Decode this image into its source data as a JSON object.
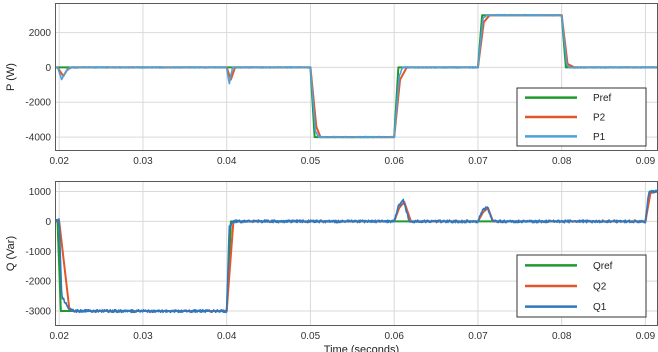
{
  "colors": {
    "ref": "#1f9a2e",
    "second": "#e2572a",
    "first": "#4ea1d8",
    "first_bottom": "#2f78c0",
    "grid": "#d9d9d9",
    "axis": "#5a5a5a"
  },
  "chart_data": [
    {
      "type": "line",
      "ylabel": "P (W)",
      "xlabel": "",
      "xlim": [
        0.0195,
        0.0915
      ],
      "ylim": [
        -4800,
        3700
      ],
      "xticks": [
        0.02,
        0.03,
        0.04,
        0.05,
        0.06,
        0.07,
        0.08,
        0.09
      ],
      "xtick_labels": [
        "0.02",
        "0.03",
        "0.04",
        "0.05",
        "0.06",
        "0.07",
        "0.08",
        "0.09"
      ],
      "yticks": [
        -4000,
        -2000,
        0,
        2000
      ],
      "ytick_labels": [
        "-4000",
        "-2000",
        "0",
        "2000"
      ],
      "grid": true,
      "legend_position": "bottom-right",
      "series": [
        {
          "name": "Pref",
          "color_key": "ref",
          "x": [
            0.0195,
            0.05,
            0.0505,
            0.06,
            0.0605,
            0.07,
            0.0705,
            0.08,
            0.0805,
            0.0915
          ],
          "y": [
            0,
            0,
            -4000,
            -4000,
            0,
            0,
            3000,
            3000,
            0,
            0
          ]
        },
        {
          "name": "P2",
          "color_key": "second",
          "x": [
            0.0195,
            0.0198,
            0.0205,
            0.021,
            0.0215,
            0.04,
            0.0405,
            0.041,
            0.05,
            0.0507,
            0.0512,
            0.06,
            0.0607,
            0.0615,
            0.07,
            0.0707,
            0.0714,
            0.08,
            0.0807,
            0.0815,
            0.0915
          ],
          "y": [
            0,
            0,
            -500,
            -100,
            0,
            0,
            -700,
            0,
            0,
            -3400,
            -4000,
            -4000,
            -700,
            0,
            0,
            2600,
            3000,
            3000,
            200,
            0,
            0
          ]
        },
        {
          "name": "P1",
          "color_key": "first",
          "noise": 35,
          "x": [
            0.0195,
            0.0198,
            0.0203,
            0.0208,
            0.0213,
            0.04,
            0.0403,
            0.0407,
            0.05,
            0.0506,
            0.051,
            0.06,
            0.0606,
            0.061,
            0.07,
            0.0706,
            0.071,
            0.08,
            0.0806,
            0.081,
            0.0915
          ],
          "y": [
            0,
            0,
            -700,
            -250,
            0,
            0,
            -950,
            0,
            0,
            -3700,
            -4000,
            -4000,
            -500,
            0,
            0,
            2800,
            3000,
            3000,
            150,
            0,
            0
          ]
        }
      ]
    },
    {
      "type": "line",
      "ylabel": "Q (Var)",
      "xlabel": "Time (seconds)",
      "xlim": [
        0.0195,
        0.0915
      ],
      "ylim": [
        -3500,
        1350
      ],
      "xticks": [
        0.02,
        0.03,
        0.04,
        0.05,
        0.06,
        0.07,
        0.08,
        0.09
      ],
      "xtick_labels": [
        "0.02",
        "0.03",
        "0.04",
        "0.05",
        "0.06",
        "0.07",
        "0.08",
        "0.09"
      ],
      "yticks": [
        -3000,
        -2000,
        -1000,
        0,
        1000
      ],
      "ytick_labels": [
        "-3000",
        "-2000",
        "-1000",
        "0",
        "1000"
      ],
      "grid": true,
      "legend_position": "bottom-right",
      "series": [
        {
          "name": "Qref",
          "color_key": "ref",
          "x": [
            0.0195,
            0.0198,
            0.0202,
            0.04,
            0.0405,
            0.09,
            0.0905,
            0.0915
          ],
          "y": [
            0,
            0,
            -3000,
            -3000,
            0,
            0,
            1000,
            1000
          ]
        },
        {
          "name": "Q2",
          "color_key": "second",
          "x": [
            0.0195,
            0.02,
            0.0212,
            0.0218,
            0.04,
            0.0408,
            0.06,
            0.0606,
            0.0612,
            0.062,
            0.07,
            0.0706,
            0.0712,
            0.0718,
            0.09,
            0.0906,
            0.0915
          ],
          "y": [
            0,
            0,
            -2900,
            -3000,
            -3000,
            0,
            0,
            450,
            650,
            0,
            0,
            300,
            450,
            0,
            0,
            950,
            1000
          ]
        },
        {
          "name": "Q1",
          "color_key": "first_bottom",
          "noise": 45,
          "x": [
            0.0195,
            0.02,
            0.0203,
            0.0212,
            0.0218,
            0.04,
            0.0403,
            0.0408,
            0.06,
            0.0605,
            0.0611,
            0.0618,
            0.07,
            0.0705,
            0.0711,
            0.0717,
            0.09,
            0.0904,
            0.0915
          ],
          "y": [
            0,
            50,
            -2500,
            -2950,
            -3000,
            -3000,
            -200,
            0,
            0,
            500,
            700,
            0,
            0,
            350,
            500,
            0,
            0,
            1000,
            1000
          ]
        }
      ]
    }
  ]
}
